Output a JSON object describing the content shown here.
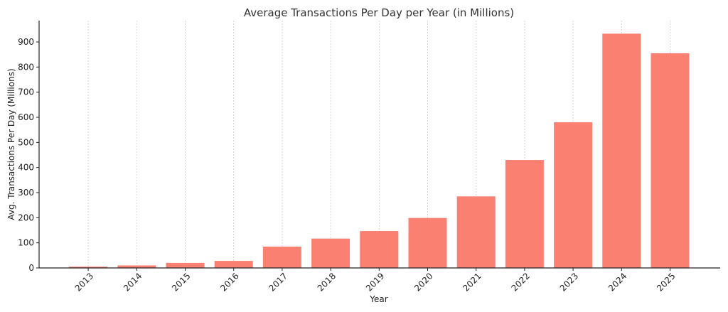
{
  "chart_data": {
    "type": "bar",
    "title": "Average Transactions Per Day per Year (in Millions)",
    "xlabel": "Year",
    "ylabel": "Avg. Transactions Per Day (Millions)",
    "categories": [
      "2013",
      "2014",
      "2015",
      "2016",
      "2017",
      "2018",
      "2019",
      "2020",
      "2021",
      "2022",
      "2023",
      "2024",
      "2025"
    ],
    "values": [
      5,
      10,
      20,
      28,
      85,
      117,
      147,
      199,
      285,
      430,
      580,
      933,
      855
    ],
    "ylim": [
      0,
      985
    ],
    "yticks": [
      0,
      100,
      200,
      300,
      400,
      500,
      600,
      700,
      800,
      900
    ],
    "grid": "vertical dashed",
    "bar_color": "#fa8072",
    "legend": "none"
  }
}
